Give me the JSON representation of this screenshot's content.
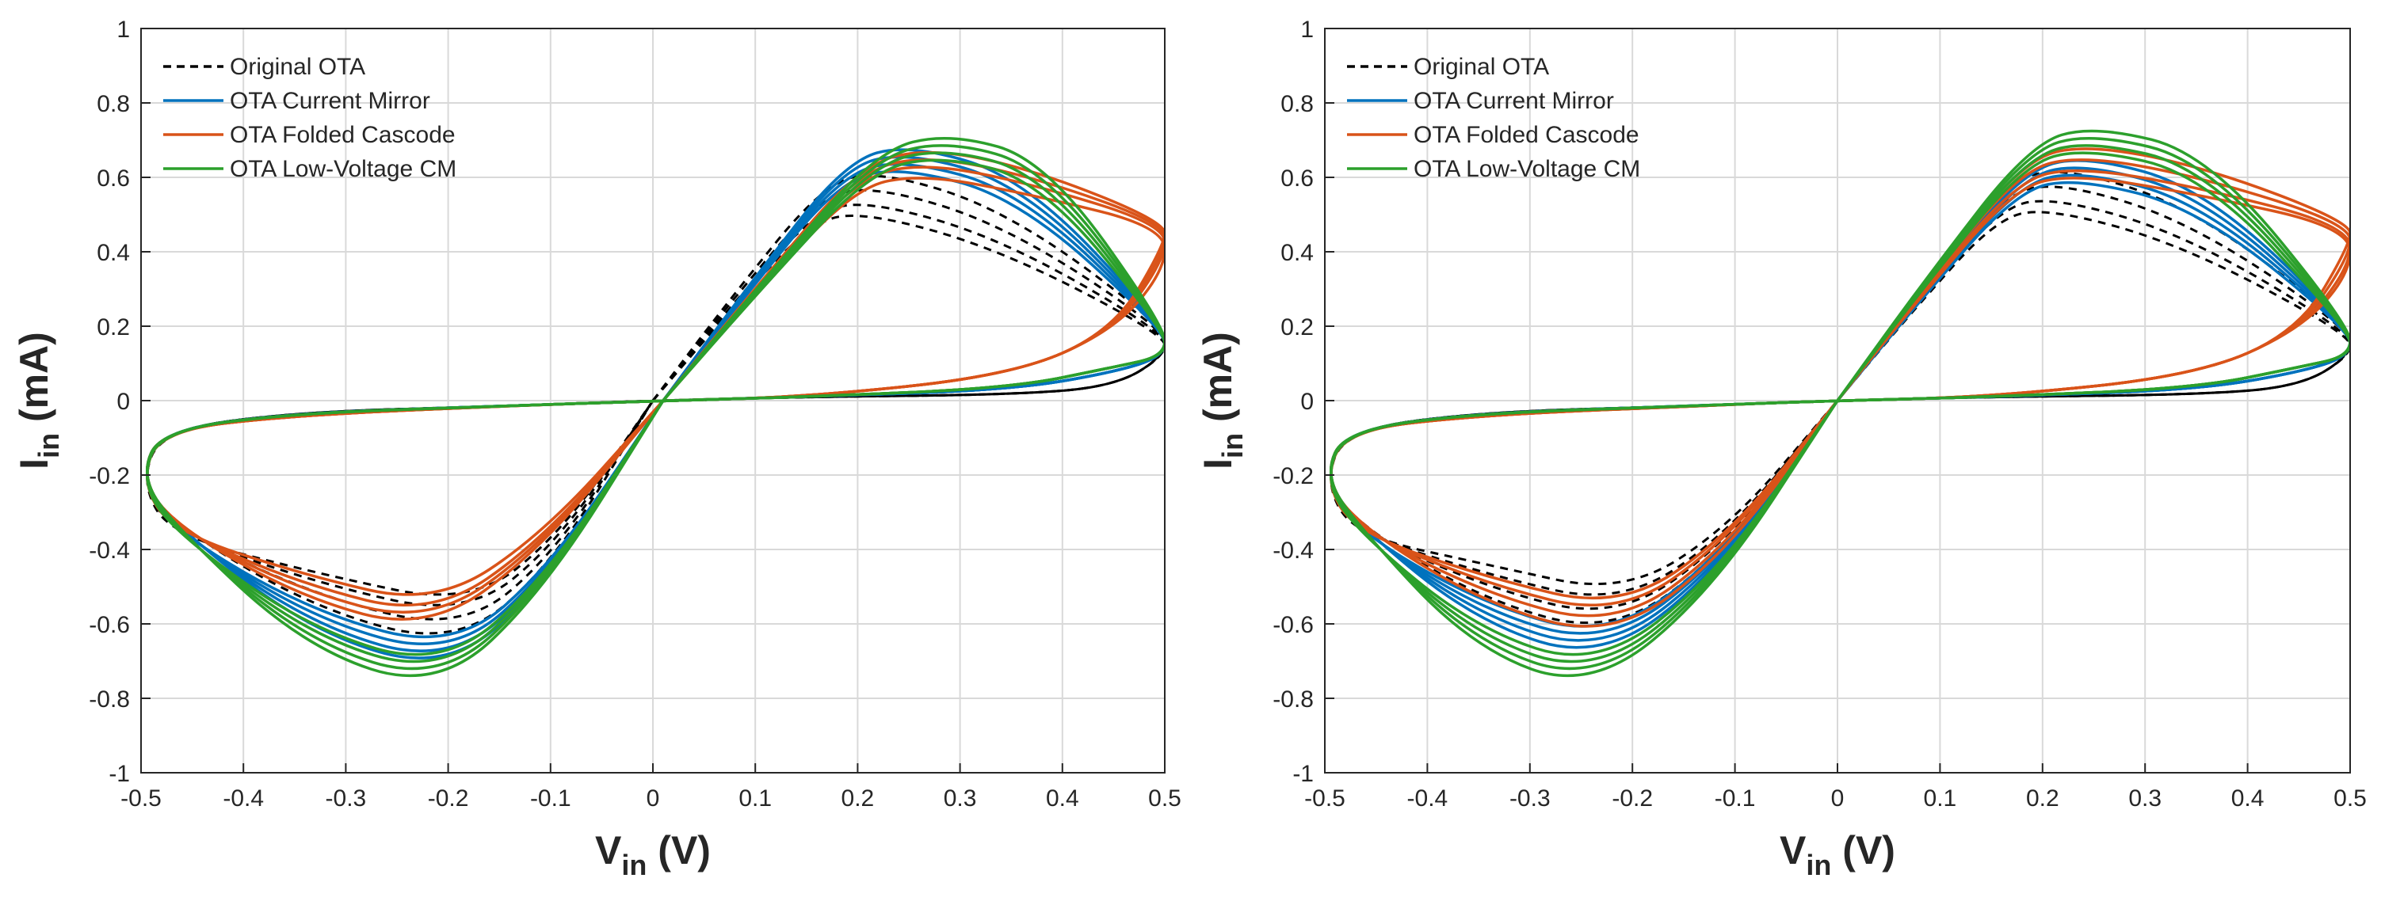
{
  "chart_data": [
    {
      "type": "line",
      "title": "",
      "xlabel_main": "V",
      "xlabel_sub": "in",
      "xlabel_unit": "(V)",
      "ylabel_main": "I",
      "ylabel_sub": "in",
      "ylabel_unit": "(mA)",
      "xlim": [
        -0.5,
        0.5
      ],
      "ylim": [
        -1,
        1
      ],
      "grid": true,
      "legend_position": "top-left",
      "xticks": [
        "-0.5",
        "-0.4",
        "-0.3",
        "-0.2",
        "-0.1",
        "0",
        "0.1",
        "0.2",
        "0.3",
        "0.4",
        "0.5"
      ],
      "yticks": [
        "-1",
        "-0.8",
        "-0.6",
        "-0.4",
        "-0.2",
        "0",
        "0.2",
        "0.4",
        "0.6",
        "0.8",
        "1"
      ],
      "series": [
        {
          "name": "Original OTA",
          "color": "#000000",
          "style": "dashed",
          "loop": {
            "px": 0.22,
            "py": 0.62,
            "nx": -0.19,
            "ny": -0.66,
            "tail": 0.05,
            "cross_x": 0.0,
            "dip": 0.5
          },
          "spread": [
            0.0,
            -0.04,
            -0.08,
            -0.11
          ]
        },
        {
          "name": "OTA Current Mirror",
          "color": "#0072BD",
          "style": "solid",
          "loop": {
            "px": 0.25,
            "py": 0.69,
            "nx": -0.2,
            "ny": -0.73,
            "tail": 0.16,
            "cross_x": 0.01,
            "dip": 0.3
          },
          "spread": [
            0.0,
            -0.02,
            -0.04,
            -0.06
          ]
        },
        {
          "name": "OTA Folded Cascode",
          "color": "#D95319",
          "style": "solid",
          "loop": {
            "px": 0.27,
            "py": 0.68,
            "nx": -0.22,
            "ny": -0.62,
            "tail": 0.48,
            "cross_x": 0.01,
            "dip": 0.05
          },
          "spread": [
            0.0,
            -0.02,
            -0.04,
            -0.07
          ]
        },
        {
          "name": "OTA Low-Voltage CM",
          "color": "#2CA02C",
          "style": "solid",
          "loop": {
            "px": 0.29,
            "py": 0.72,
            "nx": -0.21,
            "ny": -0.78,
            "tail": 0.2,
            "cross_x": 0.01,
            "dip": 0.15
          },
          "spread": [
            0.0,
            -0.02,
            -0.04,
            -0.06
          ]
        }
      ]
    },
    {
      "type": "line",
      "title": "",
      "xlabel_main": "V",
      "xlabel_sub": "in",
      "xlabel_unit": "(V)",
      "ylabel_main": "I",
      "ylabel_sub": "in",
      "ylabel_unit": "(mA)",
      "xlim": [
        -0.5,
        0.5
      ],
      "ylim": [
        -1,
        1
      ],
      "grid": true,
      "legend_position": "top-left",
      "xticks": [
        "-0.5",
        "-0.4",
        "-0.3",
        "-0.2",
        "-0.1",
        "0",
        "0.1",
        "0.2",
        "0.3",
        "0.4",
        "0.5"
      ],
      "yticks": [
        "-1",
        "-0.8",
        "-0.6",
        "-0.4",
        "-0.2",
        "0",
        "0.2",
        "0.4",
        "0.6",
        "0.8",
        "1"
      ],
      "series": [
        {
          "name": "Original OTA",
          "color": "#000000",
          "style": "dashed",
          "loop": {
            "px": 0.22,
            "py": 0.63,
            "nx": -0.22,
            "ny": -0.63,
            "tail": 0.05,
            "cross_x": 0.0,
            "dip": 0.5
          },
          "spread": [
            0.0,
            -0.04,
            -0.08,
            -0.11
          ]
        },
        {
          "name": "OTA Current Mirror",
          "color": "#0072BD",
          "style": "solid",
          "loop": {
            "px": 0.24,
            "py": 0.66,
            "nx": -0.23,
            "ny": -0.7,
            "tail": 0.16,
            "cross_x": 0.0,
            "dip": 0.3
          },
          "spread": [
            0.0,
            -0.02,
            -0.04,
            -0.06
          ]
        },
        {
          "name": "OTA Folded Cascode",
          "color": "#D95319",
          "style": "solid",
          "loop": {
            "px": 0.24,
            "py": 0.69,
            "nx": -0.22,
            "ny": -0.64,
            "tail": 0.48,
            "cross_x": 0.0,
            "dip": 0.05
          },
          "spread": [
            0.0,
            -0.03,
            -0.06,
            -0.08
          ]
        },
        {
          "name": "OTA Low-Voltage CM",
          "color": "#2CA02C",
          "style": "solid",
          "loop": {
            "px": 0.25,
            "py": 0.74,
            "nx": -0.24,
            "ny": -0.78,
            "tail": 0.2,
            "cross_x": 0.0,
            "dip": 0.15
          },
          "spread": [
            0.0,
            -0.02,
            -0.04,
            -0.06
          ]
        }
      ]
    }
  ]
}
